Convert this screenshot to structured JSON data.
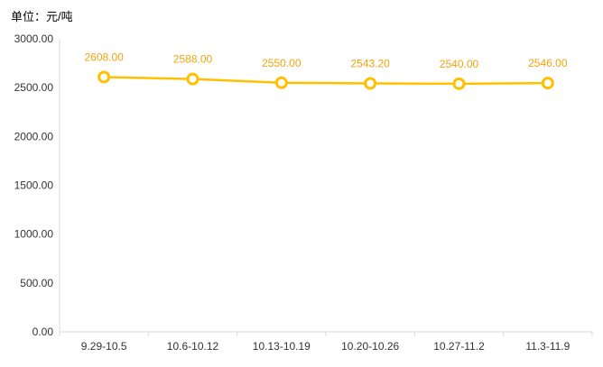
{
  "unit_label": "单位：元/吨",
  "colors": {
    "line": "#FFC000",
    "data_label": "#F0A30A",
    "axis": "#D9D9D9",
    "text": "#333333"
  },
  "chart_data": {
    "type": "line",
    "title": "",
    "xlabel": "",
    "ylabel": "单位：元/吨",
    "categories": [
      "9.29-10.5",
      "10.6-10.12",
      "10.13-10.19",
      "10.20-10.26",
      "10.27-11.2",
      "11.3-11.9"
    ],
    "series": [
      {
        "values": [
          2608.0,
          2588.0,
          2550.0,
          2543.2,
          2540.0,
          2546.0
        ]
      }
    ],
    "data_labels": [
      "2608.00",
      "2588.00",
      "2550.00",
      "2543.20",
      "2540.00",
      "2546.00"
    ],
    "ylim": [
      0,
      3000
    ],
    "yticks": [
      0,
      500,
      1000,
      1500,
      2000,
      2500,
      3000
    ],
    "ytick_labels": [
      "0.00",
      "500.00",
      "1000.00",
      "1500.00",
      "2000.00",
      "2500.00",
      "3000.00"
    ],
    "grid": false,
    "legend": "none"
  }
}
